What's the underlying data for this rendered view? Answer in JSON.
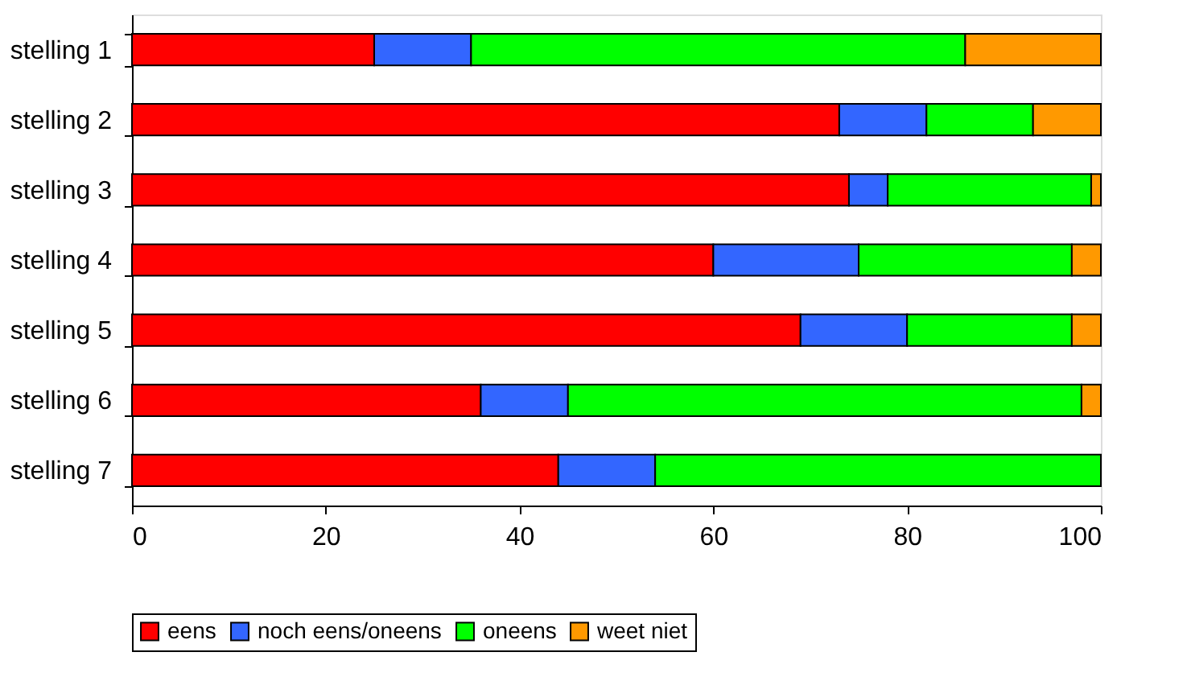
{
  "chart_data": {
    "type": "bar",
    "orientation": "horizontal",
    "stacked": true,
    "categories": [
      "stelling 1",
      "stelling 2",
      "stelling 3",
      "stelling 4",
      "stelling 5",
      "stelling 6",
      "stelling 7"
    ],
    "series": [
      {
        "name": "eens",
        "color": "#ff0000",
        "values": [
          25,
          73,
          74,
          60,
          69,
          36,
          44
        ]
      },
      {
        "name": "noch eens/oneens",
        "color": "#3366ff",
        "values": [
          10,
          9,
          4,
          15,
          11,
          9,
          10
        ]
      },
      {
        "name": "oneens",
        "color": "#00ff00",
        "values": [
          51,
          11,
          21,
          22,
          17,
          53,
          46
        ]
      },
      {
        "name": "weet niet",
        "color": "#ff9900",
        "values": [
          14,
          7,
          1,
          3,
          3,
          2,
          null
        ]
      }
    ],
    "xlim": [
      0,
      100
    ],
    "xticks": [
      0,
      20,
      40,
      60,
      80,
      100
    ],
    "grid": false,
    "legend": "bottom"
  }
}
